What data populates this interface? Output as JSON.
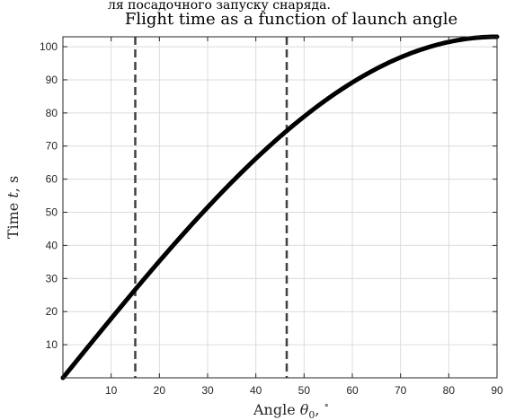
{
  "header_fragment": "ля посадочного запуску снаряда.",
  "chart_data": {
    "type": "line",
    "title": "Flight time as a function of launch angle",
    "xlabel": {
      "prefix": "Angle ",
      "symbol": "θ",
      "subscript": "0",
      "suffix": ", ",
      "unit": "∘"
    },
    "ylabel": {
      "prefix": "Time ",
      "symbol": "t",
      "suffix": ", s"
    },
    "xlim": [
      0,
      90
    ],
    "ylim": [
      0,
      103
    ],
    "xticks": [
      10,
      20,
      30,
      40,
      50,
      60,
      70,
      80,
      90
    ],
    "yticks": [
      10,
      20,
      30,
      40,
      50,
      60,
      70,
      80,
      90,
      100
    ],
    "grid": true,
    "series": [
      {
        "amplitude": 103,
        "x": [
          0,
          5,
          10,
          15,
          20,
          25,
          30,
          35,
          40,
          45,
          50,
          55,
          60,
          65,
          70,
          75,
          80,
          85,
          90
        ],
        "y": [
          0,
          8.98,
          17.89,
          26.66,
          35.23,
          43.53,
          51.5,
          59.08,
          66.21,
          72.83,
          78.9,
          84.37,
          89.2,
          93.35,
          96.79,
          99.49,
          101.44,
          102.61,
          103
        ]
      }
    ],
    "vlines": [
      15,
      46.4
    ],
    "colors": {
      "line": "#000000",
      "vline": "#404040",
      "grid": "#dcdcdc",
      "axis": "#262626"
    }
  }
}
